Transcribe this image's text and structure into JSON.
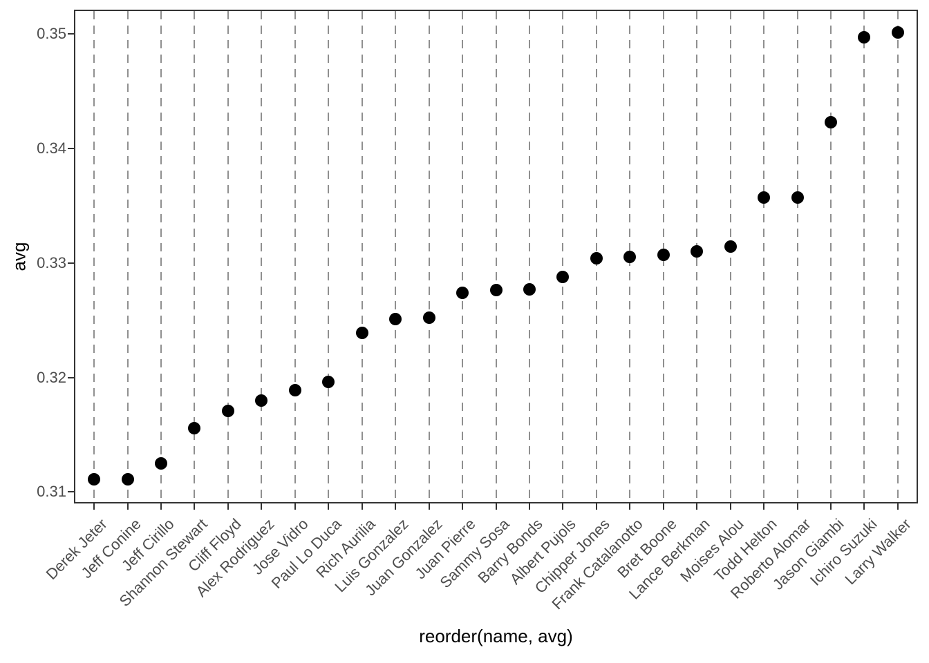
{
  "chart_data": {
    "type": "scatter",
    "title": "",
    "xlabel": "reorder(name, avg)",
    "ylabel": "avg",
    "categories": [
      "Derek Jeter",
      "Jeff Conine",
      "Jeff Cirillo",
      "Shannon Stewart",
      "Cliff Floyd",
      "Alex Rodriguez",
      "Jose Vidro",
      "Paul Lo Duca",
      "Rich Aurilia",
      "Luis Gonzalez",
      "Juan Gonzalez",
      "Juan Pierre",
      "Sammy Sosa",
      "Barry Bonds",
      "Albert Pujols",
      "Chipper Jones",
      "Frank Catalanotto",
      "Bret Boone",
      "Lance Berkman",
      "Moises Alou",
      "Todd Helton",
      "Roberto Alomar",
      "Jason Giambi",
      "Ichiro Suzuki",
      "Larry Walker"
    ],
    "values": [
      0.3111,
      0.3111,
      0.3125,
      0.3156,
      0.3171,
      0.318,
      0.3189,
      0.3196,
      0.3239,
      0.3251,
      0.3252,
      0.3274,
      0.3276,
      0.3277,
      0.3288,
      0.3304,
      0.3305,
      0.3307,
      0.331,
      0.3314,
      0.3357,
      0.3357,
      0.3423,
      0.3497,
      0.3501
    ],
    "ylim": [
      0.309,
      0.3521
    ],
    "yticks": {
      "values": [
        0.31,
        0.32,
        0.33,
        0.34,
        0.35
      ],
      "labels": [
        "0.31",
        "0.32",
        "0.33",
        "0.34",
        "0.35"
      ]
    },
    "grid": {
      "vertical_dashed": true,
      "horizontal": false
    },
    "legend": "none",
    "colors": {
      "point": "#000000",
      "gridline": "#8f8f8f",
      "panel_border": "#333333",
      "tick": "#333333",
      "axis_text": "#4d4d4d",
      "axis_title": "#000000",
      "background": "#ffffff"
    }
  }
}
